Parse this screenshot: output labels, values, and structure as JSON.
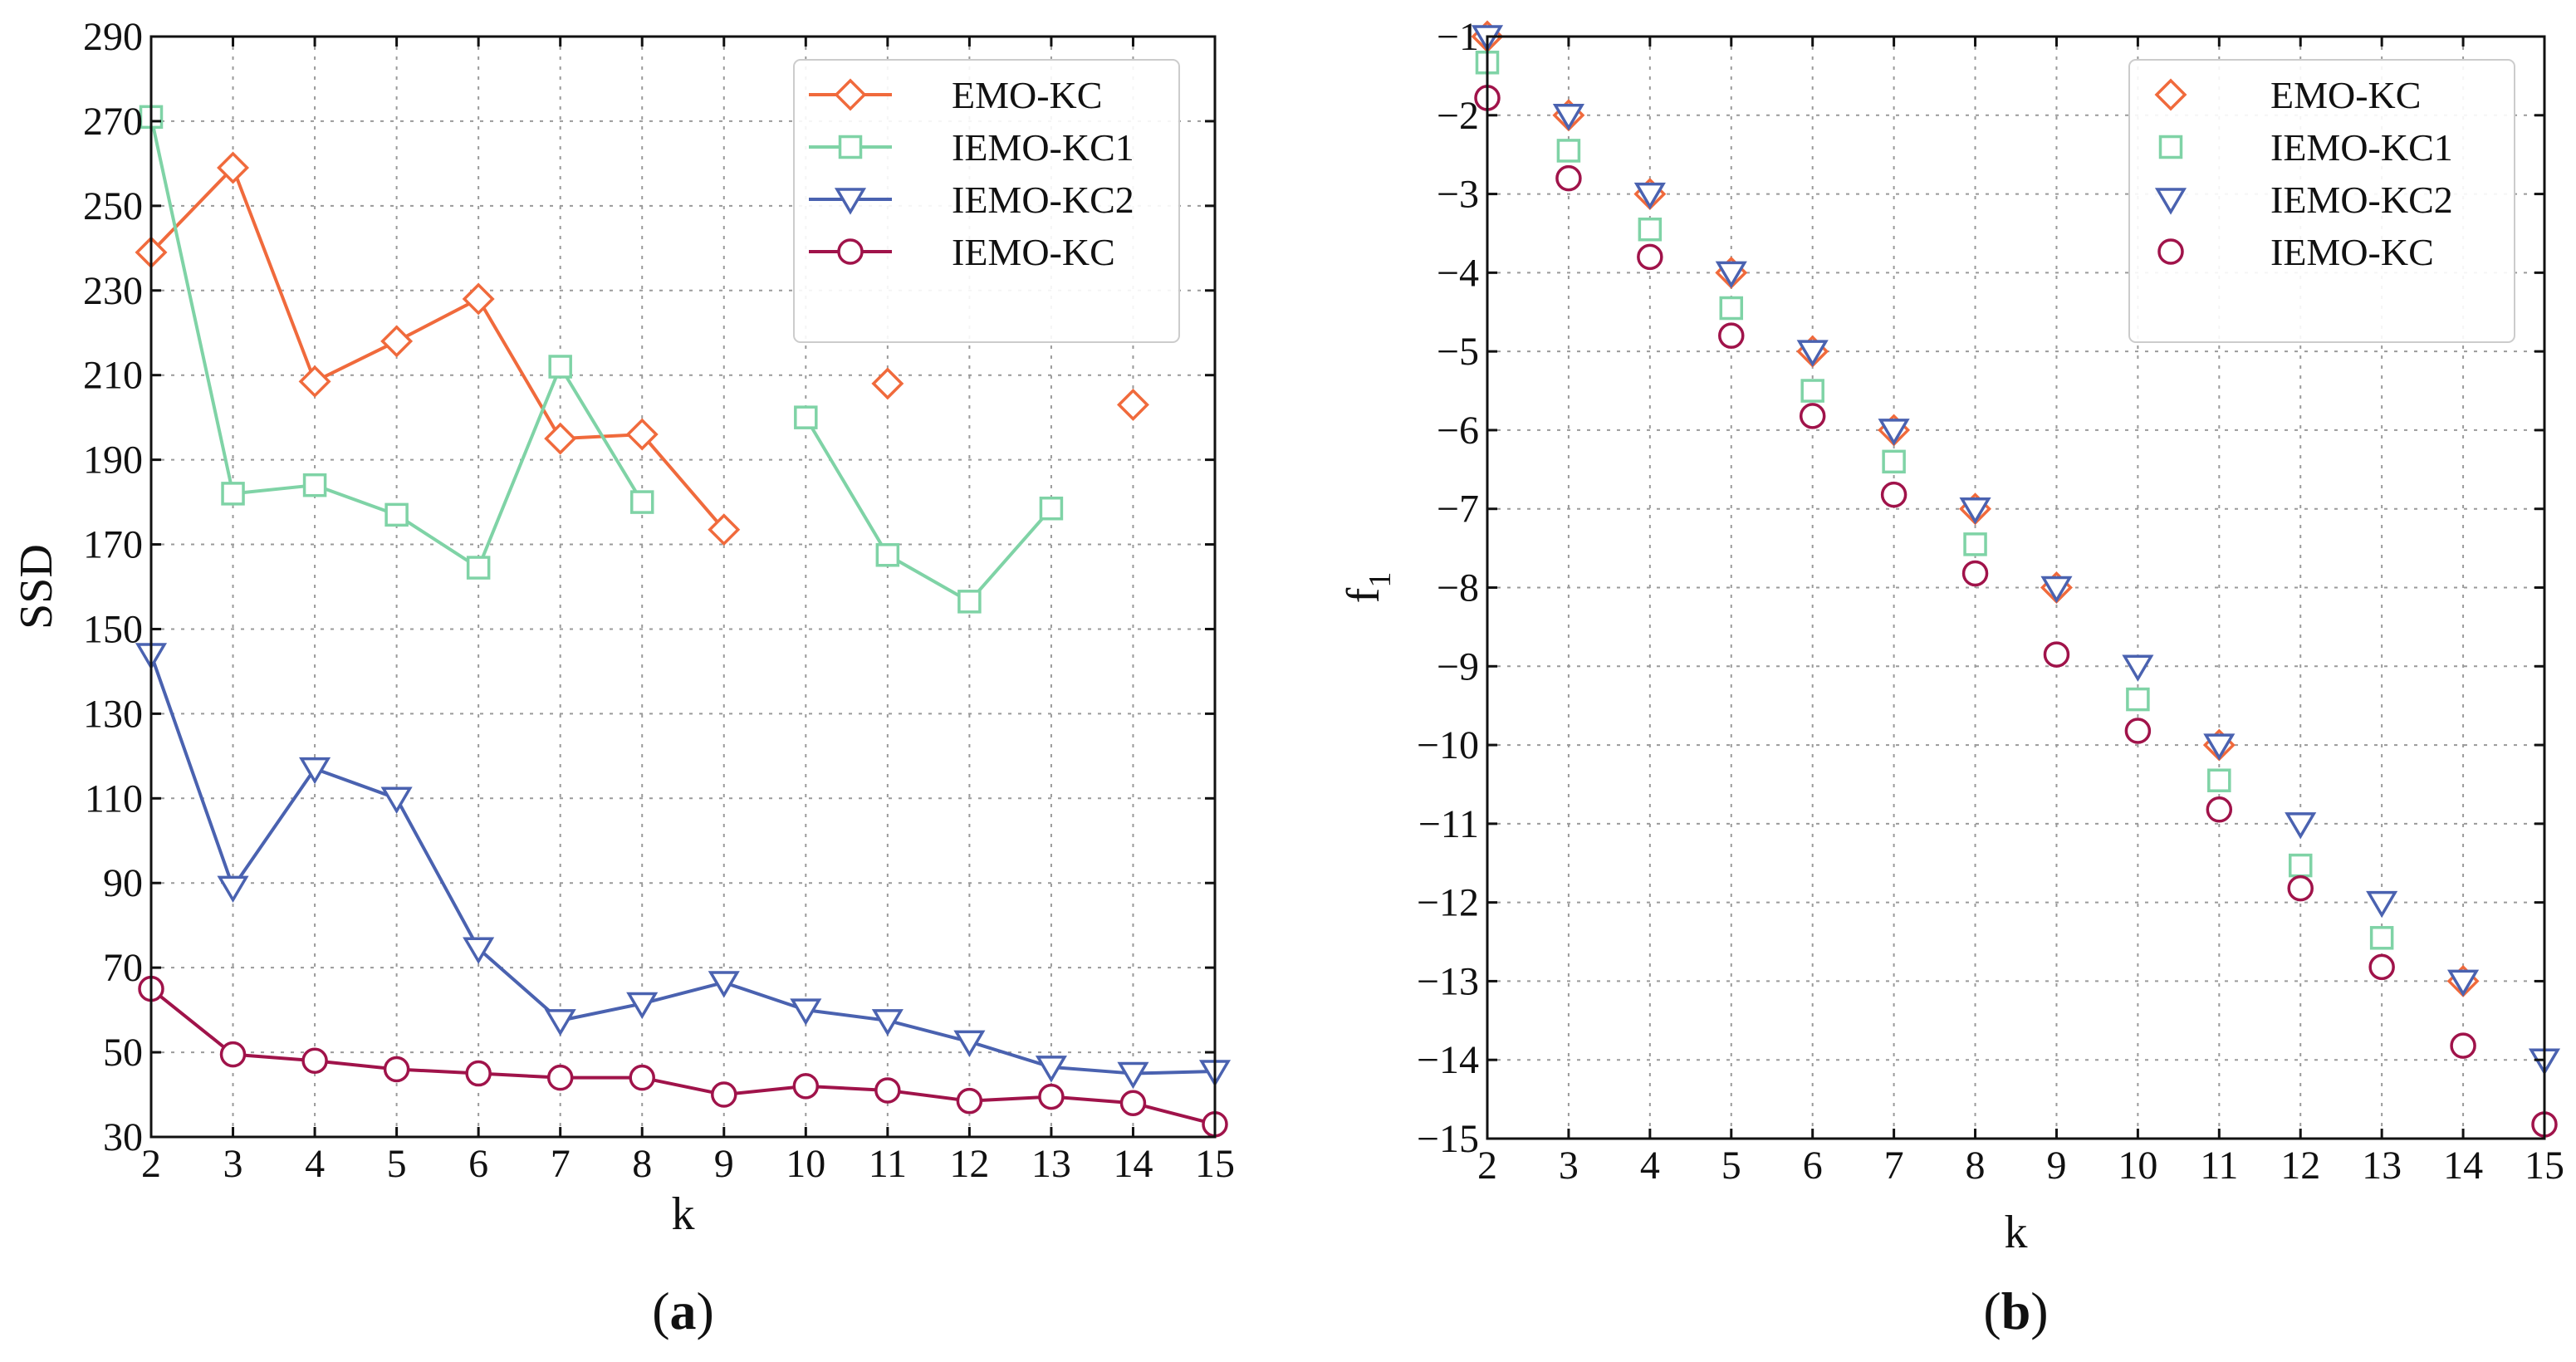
{
  "chart_data": [
    {
      "type": "line",
      "panel": "(a)",
      "panel_letter": "a",
      "xlabel": "k",
      "ylabel": "SSD",
      "xlim": [
        2,
        15
      ],
      "ylim": [
        30,
        290
      ],
      "x_ticks": [
        2,
        3,
        4,
        5,
        6,
        7,
        8,
        9,
        10,
        11,
        12,
        13,
        14,
        15
      ],
      "y_ticks": [
        30,
        50,
        70,
        90,
        110,
        130,
        150,
        170,
        190,
        210,
        230,
        250,
        270,
        290
      ],
      "legend_position": "top-right",
      "series": [
        {
          "name": "EMO-KC",
          "color": "#f06a3c",
          "marker": "diamond",
          "x": [
            2,
            3,
            4,
            5,
            6,
            7,
            8,
            9,
            11,
            14
          ],
          "values": [
            239,
            259,
            208.5,
            218,
            228,
            195,
            196,
            173.5,
            208,
            203
          ],
          "line_segments": [
            [
              2,
              9
            ]
          ]
        },
        {
          "name": "IEMO-KC1",
          "color": "#7fd3a6",
          "marker": "square",
          "x": [
            2,
            3,
            4,
            5,
            6,
            7,
            8,
            10,
            11,
            12,
            13
          ],
          "values": [
            271,
            182,
            184,
            177,
            164.5,
            212,
            180,
            200,
            167.5,
            156.5,
            178.5
          ],
          "line_segments": [
            [
              2,
              8
            ],
            [
              10,
              13
            ]
          ]
        },
        {
          "name": "IEMO-KC2",
          "color": "#4a62b0",
          "marker": "triangle-down",
          "x": [
            2,
            3,
            4,
            5,
            6,
            7,
            8,
            9,
            10,
            11,
            12,
            13,
            14,
            15
          ],
          "values": [
            144,
            89,
            117,
            110,
            74.5,
            57.5,
            61.5,
            66.5,
            60,
            57.5,
            52.5,
            46.5,
            45,
            45.5
          ],
          "line_segments": [
            [
              2,
              15
            ]
          ]
        },
        {
          "name": "IEMO-KC",
          "color": "#a0134a",
          "marker": "circle",
          "x": [
            2,
            3,
            4,
            5,
            6,
            7,
            8,
            9,
            10,
            11,
            12,
            13,
            14,
            15
          ],
          "values": [
            65,
            49.5,
            48,
            46,
            45,
            44,
            44,
            40,
            42,
            41,
            38.5,
            39.5,
            38,
            33
          ],
          "line_segments": [
            [
              2,
              15
            ]
          ]
        }
      ]
    },
    {
      "type": "scatter",
      "panel": "(b)",
      "panel_letter": "b",
      "xlabel": "k",
      "ylabel": "f",
      "ylabel_sub": "1",
      "xlim": [
        2,
        15
      ],
      "ylim": [
        -15,
        -1
      ],
      "x_ticks": [
        2,
        3,
        4,
        5,
        6,
        7,
        8,
        9,
        10,
        11,
        12,
        13,
        14,
        15
      ],
      "y_ticks": [
        -1,
        -2,
        -3,
        -4,
        -5,
        -6,
        -7,
        -8,
        -9,
        -10,
        -11,
        -12,
        -13,
        -14,
        -15
      ],
      "legend_position": "top-right",
      "series": [
        {
          "name": "EMO-KC",
          "color": "#f06a3c",
          "marker": "diamond",
          "x": [
            2,
            3,
            4,
            5,
            6,
            7,
            8,
            9,
            11,
            14
          ],
          "values": [
            -1,
            -2,
            -3,
            -4,
            -5,
            -6,
            -7,
            -8,
            -10,
            -13
          ]
        },
        {
          "name": "IEMO-KC1",
          "color": "#7fd3a6",
          "marker": "square",
          "x": [
            2,
            3,
            4,
            5,
            6,
            7,
            8,
            10,
            11,
            12,
            13
          ],
          "values": [
            -1.33,
            -2.45,
            -3.45,
            -4.45,
            -5.5,
            -6.4,
            -7.45,
            -9.42,
            -10.45,
            -11.53,
            -12.45
          ]
        },
        {
          "name": "IEMO-KC2",
          "color": "#4a62b0",
          "marker": "triangle-down",
          "x": [
            2,
            3,
            4,
            5,
            6,
            7,
            8,
            9,
            10,
            11,
            12,
            13,
            14,
            15
          ],
          "values": [
            -1,
            -2,
            -3,
            -4,
            -5,
            -6,
            -7,
            -8,
            -9,
            -10,
            -11,
            -12,
            -13,
            -14
          ]
        },
        {
          "name": "IEMO-KC",
          "color": "#a0134a",
          "marker": "circle",
          "x": [
            2,
            3,
            4,
            5,
            6,
            7,
            8,
            9,
            10,
            11,
            12,
            13,
            14,
            15
          ],
          "values": [
            -1.78,
            -2.8,
            -3.8,
            -4.8,
            -5.82,
            -6.82,
            -7.82,
            -8.85,
            -9.82,
            -10.82,
            -11.82,
            -12.82,
            -13.82,
            -14.82
          ]
        }
      ]
    }
  ]
}
